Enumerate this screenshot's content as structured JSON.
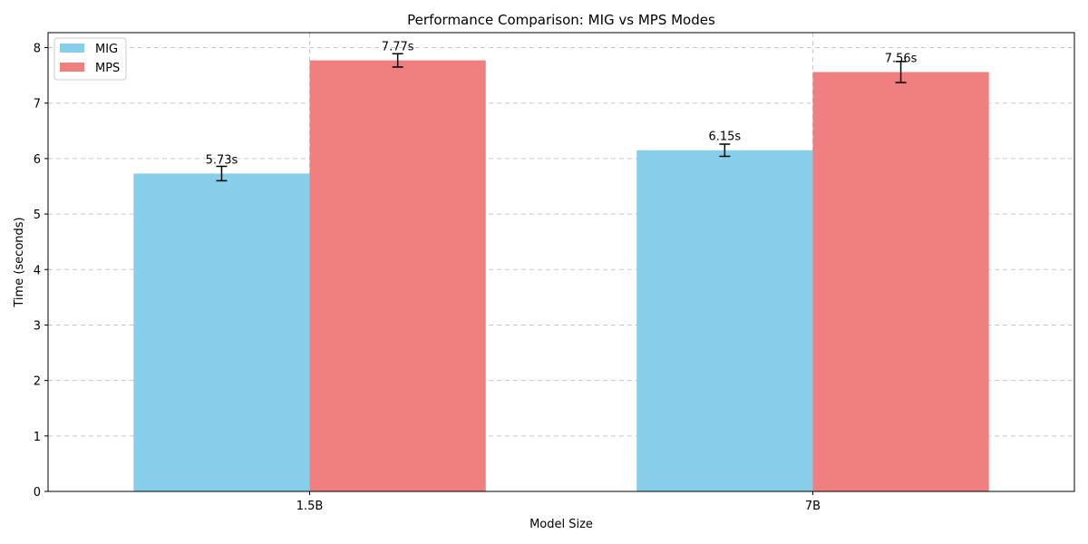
{
  "chart_data": {
    "type": "bar",
    "title": "Performance Comparison: MIG vs MPS Modes",
    "xlabel": "Model Size",
    "ylabel": "Time (seconds)",
    "categories": [
      "1.5B",
      "7B"
    ],
    "series": [
      {
        "name": "MIG",
        "color": "#87ceeb",
        "values": [
          5.73,
          6.15
        ],
        "errors": [
          0.13,
          0.11
        ],
        "labels": [
          "5.73s",
          "6.15s"
        ]
      },
      {
        "name": "MPS",
        "color": "#f08080",
        "values": [
          7.77,
          7.56
        ],
        "errors": [
          0.12,
          0.19
        ],
        "labels": [
          "7.77s",
          "7.56s"
        ]
      }
    ],
    "ylim": [
      0,
      8.27
    ],
    "yticks": [
      "0",
      "1",
      "2",
      "3",
      "4",
      "5",
      "6",
      "7",
      "8"
    ],
    "grid": true,
    "legend_position": "top-left"
  }
}
